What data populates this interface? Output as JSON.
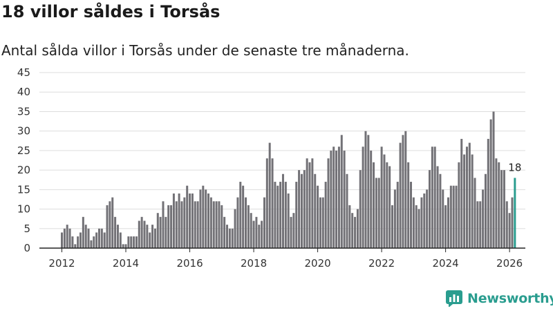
{
  "title": "18 villor såldes i Torsås",
  "subtitle": "Antal sålda villor i Torsås under de senaste tre månaderna.",
  "brand": "Newsworthy",
  "colors": {
    "bar": "#727176",
    "highlight": "#2a9d8f",
    "grid": "#dddddd",
    "axis": "#222222",
    "brand": "#2a9d8f"
  },
  "chart_data": {
    "type": "bar",
    "title": "18 villor såldes i Torsås",
    "subtitle": "Antal sålda villor i Torsås under de senaste tre månaderna.",
    "xlabel": "",
    "ylabel": "",
    "frequency": "monthly (rolling 3-month total)",
    "start": "2012-01",
    "end": "2026-03",
    "ylim": [
      0,
      45
    ],
    "yticks": [
      0,
      5,
      10,
      15,
      20,
      25,
      30,
      35,
      40,
      45
    ],
    "xticks": [
      "2012",
      "2014",
      "2016",
      "2018",
      "2020",
      "2022",
      "2024",
      "2026"
    ],
    "grid": true,
    "highlight_last": true,
    "last_value_label": "18",
    "values": [
      4,
      5,
      6,
      5,
      3,
      1,
      3,
      4,
      8,
      6,
      5,
      2,
      3,
      4,
      5,
      5,
      4,
      11,
      12,
      13,
      8,
      6,
      4,
      1,
      1,
      3,
      3,
      3,
      3,
      7,
      8,
      7,
      6,
      4,
      6,
      5,
      9,
      8,
      12,
      8,
      11,
      11,
      14,
      12,
      14,
      12,
      13,
      16,
      14,
      14,
      12,
      12,
      15,
      16,
      15,
      14,
      13,
      12,
      12,
      12,
      11,
      8,
      6,
      5,
      5,
      10,
      13,
      17,
      16,
      13,
      11,
      9,
      7,
      8,
      6,
      7,
      13,
      23,
      27,
      23,
      17,
      16,
      17,
      19,
      17,
      14,
      8,
      9,
      17,
      20,
      19,
      20,
      23,
      22,
      23,
      19,
      16,
      13,
      13,
      17,
      23,
      25,
      26,
      25,
      26,
      29,
      25,
      19,
      11,
      9,
      8,
      10,
      20,
      26,
      30,
      29,
      25,
      22,
      18,
      18,
      26,
      24,
      22,
      21,
      11,
      15,
      17,
      27,
      29,
      30,
      22,
      17,
      13,
      11,
      10,
      13,
      14,
      15,
      20,
      26,
      26,
      21,
      19,
      15,
      11,
      13,
      16,
      16,
      16,
      22,
      28,
      24,
      26,
      27,
      24,
      18,
      12,
      12,
      15,
      19,
      28,
      33,
      35,
      23,
      22,
      20,
      20,
      12,
      9,
      13,
      18
    ]
  }
}
